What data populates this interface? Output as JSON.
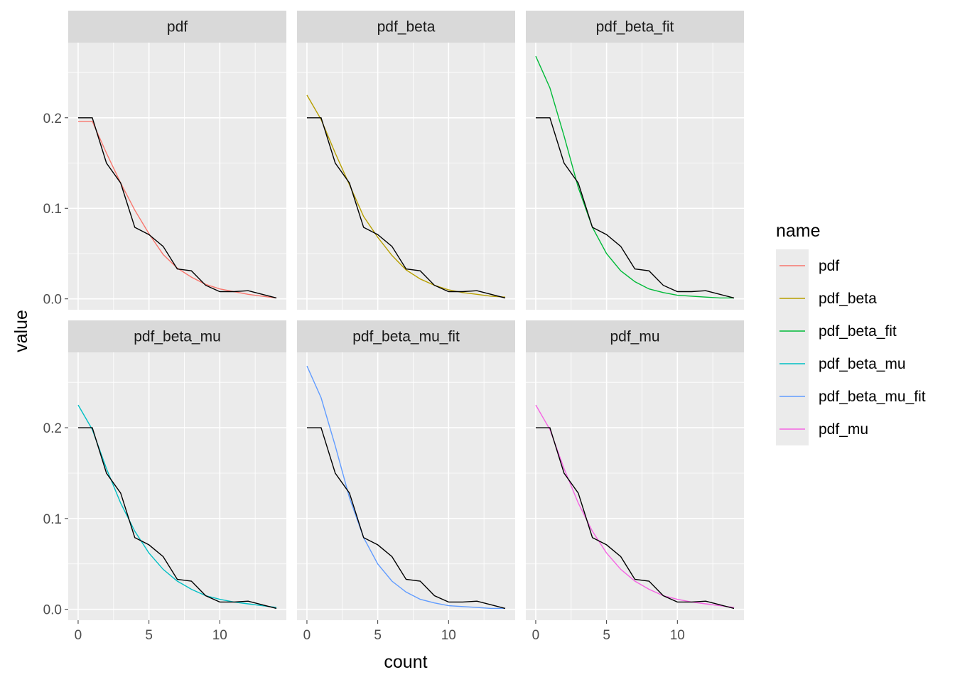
{
  "chart_data": {
    "type": "line",
    "xlabel": "count",
    "ylabel": "value",
    "xlim": [
      -0.7,
      14.7
    ],
    "ylim": [
      -0.012,
      0.283
    ],
    "x_ticks": [
      0,
      5,
      10
    ],
    "x_tick_labels": [
      "0",
      "5",
      "10"
    ],
    "y_ticks": [
      0.0,
      0.1,
      0.2
    ],
    "y_tick_labels": [
      "0.0",
      "0.1",
      "0.2"
    ],
    "grid": true,
    "legend": {
      "title": "name",
      "position": "right"
    },
    "x": [
      0,
      1,
      2,
      3,
      4,
      5,
      6,
      7,
      8,
      9,
      10,
      11,
      12,
      13,
      14
    ],
    "observed": [
      0.2,
      0.2,
      0.15,
      0.128,
      0.079,
      0.071,
      0.058,
      0.033,
      0.031,
      0.015,
      0.008,
      0.008,
      0.009,
      0.005,
      0.001
    ],
    "observed_color": "#000000",
    "panels": [
      {
        "name": "pdf",
        "color": "#F8766D",
        "values": [
          0.196,
          0.196,
          0.161,
          0.128,
          0.098,
          0.072,
          0.049,
          0.034,
          0.024,
          0.016,
          0.011,
          0.008,
          0.005,
          0.003,
          0.001
        ]
      },
      {
        "name": "pdf_beta",
        "color": "#B79F00",
        "values": [
          0.225,
          0.198,
          0.161,
          0.126,
          0.091,
          0.068,
          0.048,
          0.032,
          0.022,
          0.015,
          0.01,
          0.007,
          0.005,
          0.003,
          0.002
        ]
      },
      {
        "name": "pdf_beta_fit",
        "color": "#00BA38",
        "values": [
          0.268,
          0.233,
          0.18,
          0.123,
          0.079,
          0.05,
          0.031,
          0.019,
          0.011,
          0.007,
          0.004,
          0.003,
          0.002,
          0.001,
          0.001
        ]
      },
      {
        "name": "pdf_beta_mu",
        "color": "#00BFC4",
        "values": [
          0.225,
          0.198,
          0.155,
          0.117,
          0.086,
          0.062,
          0.044,
          0.031,
          0.022,
          0.015,
          0.011,
          0.008,
          0.006,
          0.004,
          0.002
        ]
      },
      {
        "name": "pdf_beta_mu_fit",
        "color": "#619CFF",
        "values": [
          0.268,
          0.233,
          0.18,
          0.123,
          0.079,
          0.05,
          0.031,
          0.019,
          0.011,
          0.007,
          0.004,
          0.003,
          0.002,
          0.001,
          0.001
        ]
      },
      {
        "name": "pdf_mu",
        "color": "#F564E3",
        "values": [
          0.225,
          0.198,
          0.155,
          0.117,
          0.086,
          0.062,
          0.044,
          0.031,
          0.022,
          0.015,
          0.011,
          0.008,
          0.006,
          0.004,
          0.002
        ]
      }
    ]
  }
}
